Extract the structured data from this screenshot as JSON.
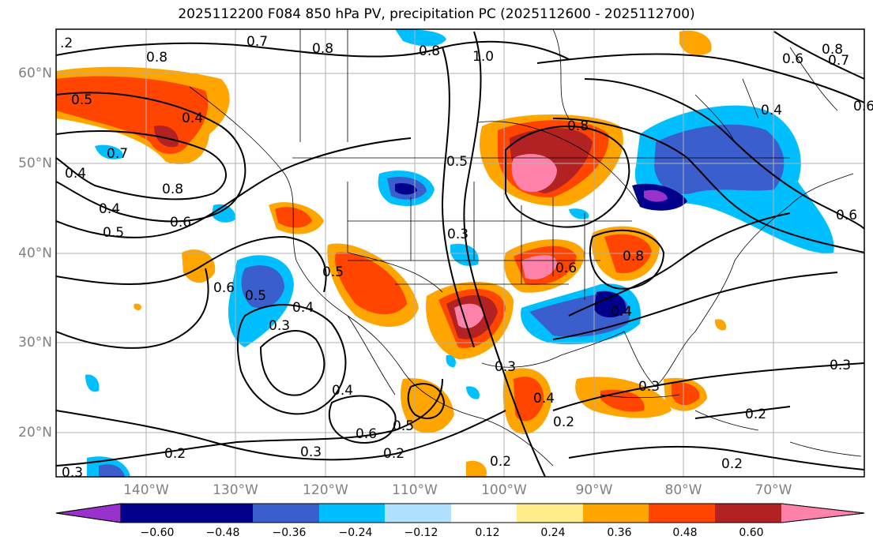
{
  "title": "2025112200 F084 850 hPa PV, precipitation PC (2025112600 - 2025112700)",
  "lat_labels": [
    "60°N",
    "50°N",
    "40°N",
    "30°N",
    "20°N"
  ],
  "lon_labels": [
    "140°W",
    "130°W",
    "120°W",
    "110°W",
    "100°W",
    "90°W",
    "80°W",
    "70°W"
  ],
  "colorbar": {
    "labels": [
      "−0.60",
      "−0.48",
      "−0.36",
      "−0.24",
      "−0.12",
      "0.12",
      "0.24",
      "0.36",
      "0.48",
      "0.60"
    ],
    "colors": [
      "#9932cc",
      "#00008b",
      "#3a5fcd",
      "#00bfff",
      "#b0e2ff",
      "#ffffff",
      "#ffec8b",
      "#ffa500",
      "#ff4500",
      "#b22222",
      "#ff82ab"
    ]
  },
  "contour_labels": [
    ".2",
    "0.8",
    "0.7",
    "0.8",
    "1.0",
    "0.8",
    "0.7",
    "0.6",
    "0.8",
    "0.5",
    "0.4",
    "0.4",
    "0.8",
    "0.6",
    "0.5",
    "0.7",
    "0.5",
    "0.8",
    "0.4",
    "0.3",
    "0.6",
    "0.5",
    "0.3",
    "0.4",
    "0.5",
    "0.6",
    "0.8",
    "0.6",
    "0.4",
    "0.4",
    "0.2",
    "0.3",
    "0.4",
    "0.6",
    "0.5",
    "0.2",
    "0.3",
    "0.3",
    "0.2",
    "0.2",
    "0.3",
    "0.2",
    "0.3",
    "0.2",
    "0.6",
    "0.4"
  ]
}
